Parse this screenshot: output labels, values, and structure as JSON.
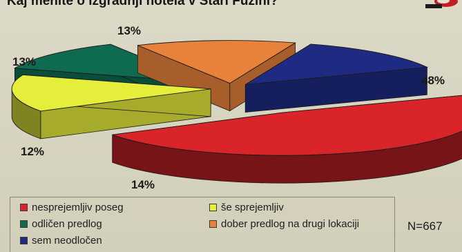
{
  "page": {
    "title": "Kaj menite o izgradnji hotela v Stari Fužini?",
    "n_label": "N=667"
  },
  "chart_data": {
    "type": "pie",
    "title": "Kaj menite o izgradnji hotela v Stari Fužini?",
    "slices": [
      {
        "key": "nesprejemljiv",
        "label": "nesprejemljiv poseg",
        "value": 48,
        "value_label": "48%",
        "color": "#d9252a"
      },
      {
        "key": "se_sprejemljiv",
        "label": "še sprejemljiv",
        "value": 14,
        "value_label": "14%",
        "color": "#e6ee3c"
      },
      {
        "key": "odlicen",
        "label": "odličen predlog",
        "value": 12,
        "value_label": "12%",
        "color": "#0e6b4f"
      },
      {
        "key": "dober",
        "label": "dober predlog na drugi lokaciji",
        "value": 13,
        "value_label": "13%",
        "color": "#e8823a"
      },
      {
        "key": "neodlocen",
        "label": "sem neodločen",
        "value": 13,
        "value_label": "13%",
        "color": "#1f2b83"
      }
    ],
    "legend_position": "bottom",
    "annotation": "N=667"
  },
  "legend": [
    {
      "label": "nesprejemljiv poseg",
      "color": "#d9252a"
    },
    {
      "label": "še sprejemljiv",
      "color": "#e6ee3c"
    },
    {
      "label": "odličen predlog",
      "color": "#0e6b4f"
    },
    {
      "label": "dober predlog na drugi lokaciji",
      "color": "#e8823a"
    },
    {
      "label": "sem neodločen",
      "color": "#1f2b83"
    }
  ],
  "logo": {
    "icon": "newspaper-logo-icon"
  }
}
